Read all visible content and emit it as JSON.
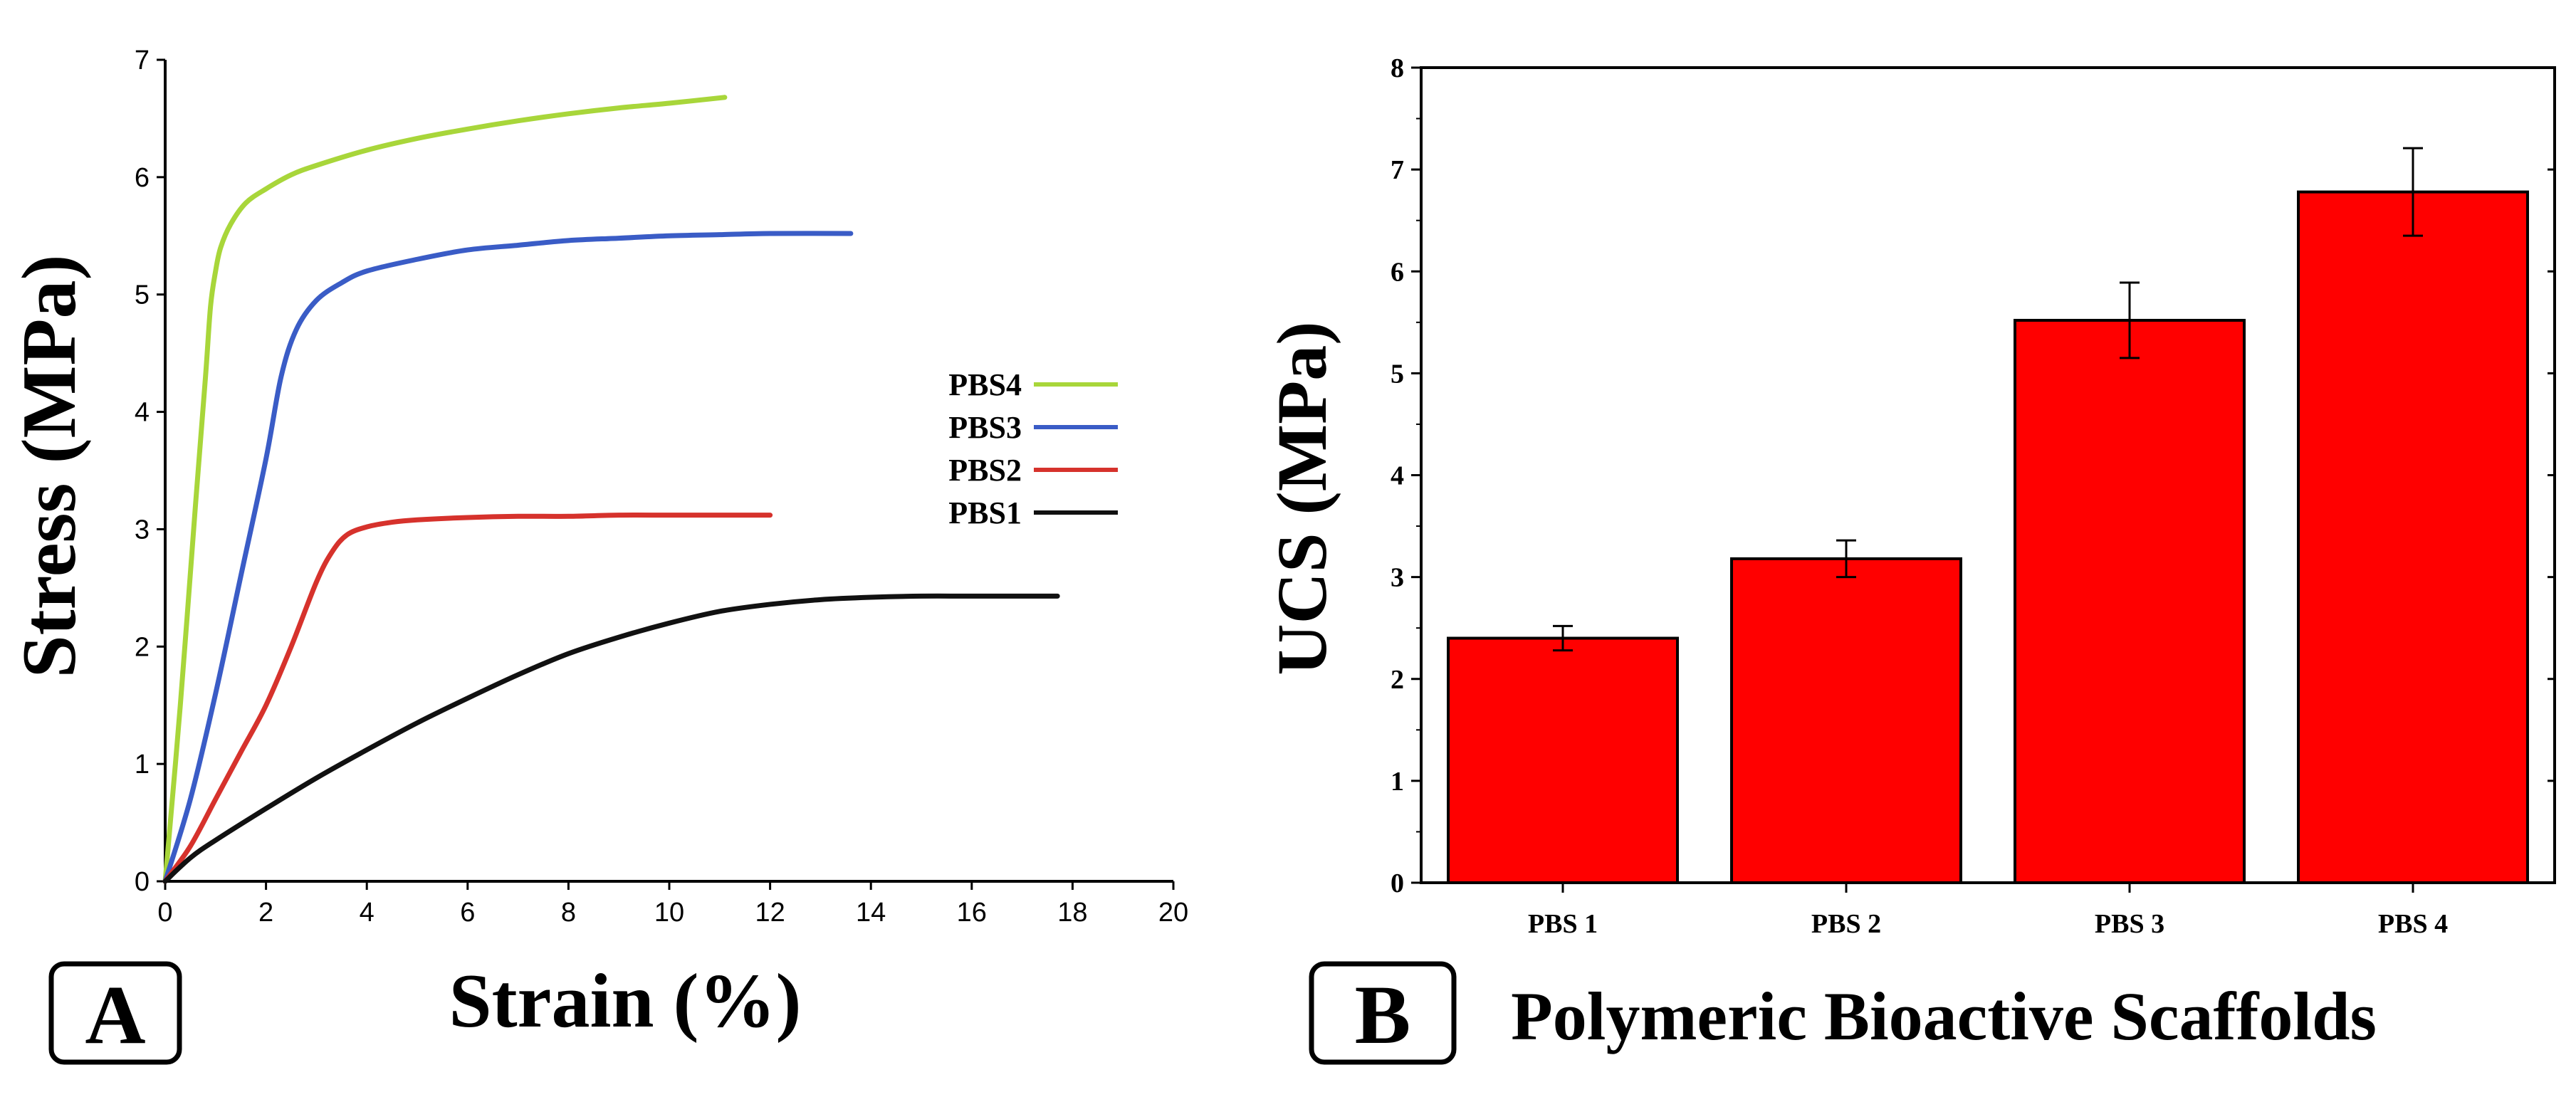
{
  "chart_data": [
    {
      "type": "line",
      "panel_label": "A",
      "title": "",
      "xlabel": "Strain (%)",
      "ylabel": "Stress (MPa)",
      "xlim": [
        0,
        20
      ],
      "ylim": [
        0,
        7
      ],
      "xticks": [
        "0",
        "2",
        "4",
        "6",
        "8",
        "10",
        "12",
        "14",
        "16",
        "18",
        "20"
      ],
      "yticks": [
        "0",
        "1",
        "2",
        "3",
        "4",
        "5",
        "6",
        "7"
      ],
      "legend_position": "center-right",
      "series": [
        {
          "name": "PBS4",
          "color": "#a8d63a",
          "x": [
            0,
            0.3,
            0.6,
            0.8,
            0.9,
            1.0,
            1.1,
            1.3,
            1.6,
            2.0,
            2.5,
            3.0,
            4.0,
            5.0,
            6.0,
            7.0,
            8.0,
            9.0,
            10.0,
            11.1
          ],
          "y": [
            0,
            1.5,
            3.2,
            4.3,
            4.9,
            5.2,
            5.4,
            5.6,
            5.78,
            5.9,
            6.02,
            6.1,
            6.23,
            6.33,
            6.41,
            6.48,
            6.54,
            6.59,
            6.63,
            6.68
          ]
        },
        {
          "name": "PBS3",
          "color": "#3a5cc6",
          "x": [
            0,
            0.5,
            1.0,
            1.5,
            2.0,
            2.3,
            2.6,
            3.0,
            3.5,
            4.0,
            5.0,
            6.0,
            7.0,
            8.0,
            9.0,
            10.0,
            11.0,
            12.0,
            13.6
          ],
          "y": [
            0,
            0.7,
            1.6,
            2.6,
            3.6,
            4.3,
            4.7,
            4.95,
            5.1,
            5.2,
            5.3,
            5.38,
            5.42,
            5.46,
            5.48,
            5.5,
            5.51,
            5.52,
            5.52
          ]
        },
        {
          "name": "PBS2",
          "color": "#d6322c",
          "x": [
            0,
            0.5,
            1.0,
            1.5,
            2.0,
            2.5,
            3.0,
            3.3,
            3.6,
            4.0,
            4.5,
            5.0,
            6.0,
            7.0,
            8.0,
            9.0,
            10.0,
            11.0,
            12.0
          ],
          "y": [
            0,
            0.3,
            0.7,
            1.1,
            1.5,
            2.0,
            2.55,
            2.8,
            2.95,
            3.02,
            3.06,
            3.08,
            3.1,
            3.11,
            3.11,
            3.12,
            3.12,
            3.12,
            3.12
          ]
        },
        {
          "name": "PBS1",
          "color": "#111111",
          "x": [
            0,
            0.5,
            1.0,
            2.0,
            3.0,
            4.0,
            5.0,
            6.0,
            7.0,
            8.0,
            9.0,
            10.0,
            11.0,
            12.0,
            13.0,
            14.0,
            15.0,
            16.0,
            17.7
          ],
          "y": [
            0,
            0.2,
            0.35,
            0.62,
            0.88,
            1.12,
            1.35,
            1.56,
            1.76,
            1.94,
            2.08,
            2.2,
            2.3,
            2.36,
            2.4,
            2.42,
            2.43,
            2.43,
            2.43
          ]
        }
      ]
    },
    {
      "type": "bar",
      "panel_label": "B",
      "title": "",
      "xlabel": "Polymeric Bioactive Scaffolds",
      "ylabel": "UCS (MPa)",
      "ylim": [
        0,
        8
      ],
      "yticks": [
        "0",
        "1",
        "2",
        "3",
        "4",
        "5",
        "6",
        "7",
        "8"
      ],
      "categories": [
        "PBS 1",
        "PBS 2",
        "PBS 3",
        "PBS 4"
      ],
      "values": [
        2.4,
        3.18,
        5.52,
        6.78
      ],
      "errors": [
        0.12,
        0.18,
        0.37,
        0.43
      ],
      "color": "#ff0000"
    }
  ]
}
